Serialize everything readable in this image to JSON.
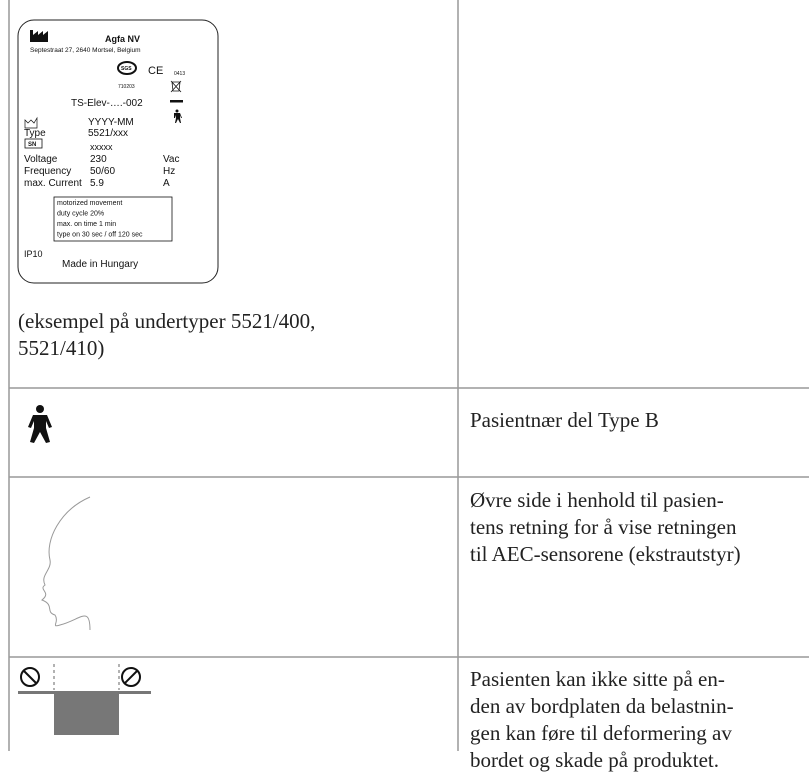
{
  "label": {
    "company": "Agfa NV",
    "address": "Septestraat 27, 2640 Mortsel, Belgium",
    "cert_mark": "SGS",
    "ce": "CE",
    "ce_number": "0413",
    "cert_number": "710203",
    "model": "TS-Elev-….-002",
    "date": "YYYY-MM",
    "type_label": "Type",
    "type_value": "5521/xxx",
    "serial_label": "SN",
    "serial_value": "xxxxx",
    "specs": [
      [
        "Voltage",
        "230",
        "Vac"
      ],
      [
        "Frequency",
        "50/60",
        "Hz"
      ],
      [
        "max. Current",
        "5.9",
        "A"
      ]
    ],
    "notice": [
      "motorized movement",
      "duty cycle 20%",
      "max. on time 1 min",
      "type on 30 sec / off 120 sec"
    ],
    "ip": "IP10",
    "origin": "Made in Hungary"
  },
  "caption": [
    "(eksempel på undertyper 5521/400,",
    "5521/410)"
  ],
  "rows": [
    {
      "text": [
        "Pasientnær del Type B"
      ]
    },
    {
      "text": [
        "Øvre side i henhold til pasien-",
        "tens retning for å vise retningen",
        "til AEC-sensorene (ekstrautstyr)"
      ]
    },
    {
      "text": [
        "Pasienten kan ikke sitte på en-",
        "den av bordplaten da belastnin-",
        "gen kan føre til deformering av",
        "bordet og skade på produktet."
      ]
    }
  ]
}
